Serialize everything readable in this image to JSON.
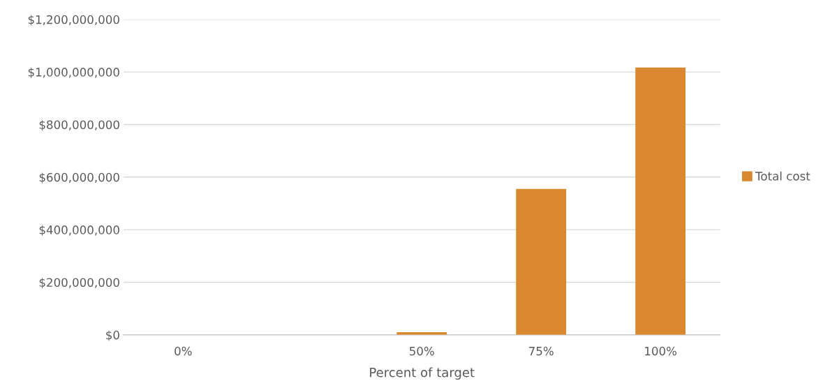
{
  "chart_data": {
    "type": "bar",
    "xlabel": "Percent of target",
    "categories": [
      "0%",
      null,
      "50%",
      "75%",
      "100%"
    ],
    "series": [
      {
        "name": "Total cost",
        "color": "#d9882f",
        "values": [
          0,
          0,
          10000000,
          555000000,
          1017000000
        ]
      }
    ],
    "ylim": [
      0,
      1200000000
    ],
    "yticks": [
      {
        "value": 0,
        "label": "$0"
      },
      {
        "value": 200000000,
        "label": "$200,000,000"
      },
      {
        "value": 400000000,
        "label": "$400,000,000"
      },
      {
        "value": 600000000,
        "label": "$600,000,000"
      },
      {
        "value": 800000000,
        "label": "$800,000,000"
      },
      {
        "value": 1000000000,
        "label": "$1,000,000,000"
      },
      {
        "value": 1200000000,
        "label": "$1,200,000,000"
      }
    ],
    "grid": "y",
    "legend": "right"
  }
}
